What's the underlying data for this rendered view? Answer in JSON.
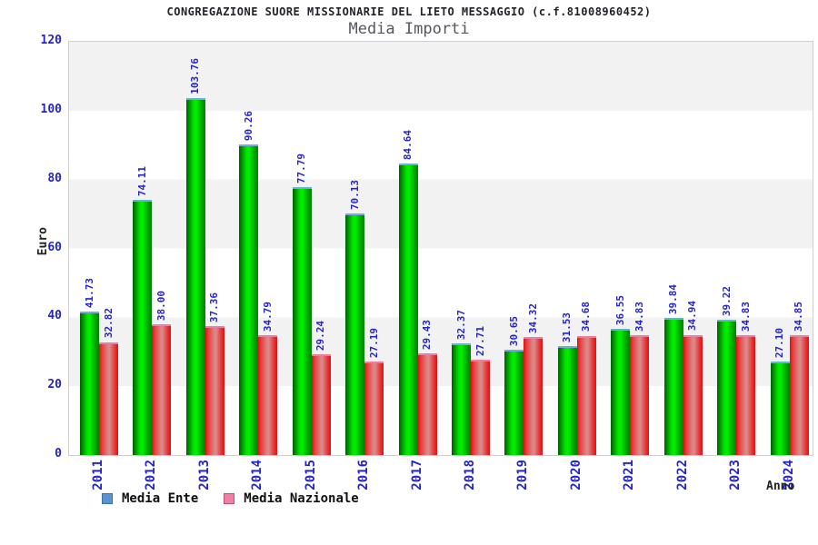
{
  "chart_data": {
    "type": "bar",
    "title": "CONGREGAZIONE SUORE MISSIONARIE DEL LIETO MESSAGGIO (c.f.81008960452)",
    "subtitle": "Media Importi",
    "xlabel": "Anno",
    "ylabel": "Euro",
    "ylim": [
      0,
      120
    ],
    "yticks": [
      0,
      20,
      40,
      60,
      80,
      100,
      120
    ],
    "grid": "alternating-horizontal-bands",
    "legend_position": "bottom-left",
    "categories": [
      "2011",
      "2012",
      "2013",
      "2014",
      "2015",
      "2016",
      "2017",
      "2018",
      "2019",
      "2020",
      "2021",
      "2022",
      "2023",
      "2024"
    ],
    "series": [
      {
        "name": "Media Ente",
        "legend_color": "#5b93d2",
        "legend_border": "#3a6ea5",
        "bar_color": "#00cc00",
        "cap_color": "#76aadd",
        "values": [
          41.73,
          74.11,
          103.76,
          90.26,
          77.79,
          70.13,
          84.64,
          32.37,
          30.65,
          31.53,
          36.55,
          39.84,
          39.22,
          27.1
        ]
      },
      {
        "name": "Media Nazionale",
        "legend_color": "#ee7fa5",
        "legend_border": "#c25074",
        "bar_color": "#e02020",
        "cap_color": "#f07ca6",
        "values": [
          32.82,
          38.0,
          37.36,
          34.79,
          29.24,
          27.19,
          29.43,
          27.71,
          34.32,
          34.68,
          34.83,
          34.94,
          34.83,
          34.85
        ]
      }
    ],
    "label_color": "#2424cc",
    "band_color": "#f2f2f2",
    "title_color": "#222228",
    "subtitle_color": "#55555e"
  }
}
